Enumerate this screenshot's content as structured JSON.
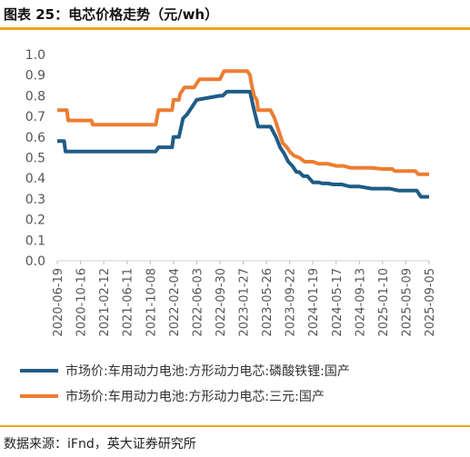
{
  "title": "图表 25：电芯价格走势（元/wh）",
  "source": "数据来源：iFnd，英大证券研究所",
  "colors": {
    "accent": "#f2a71b"
  },
  "chart_data": {
    "type": "line",
    "ylim": [
      0,
      1.0
    ],
    "yticks": [
      "0.0",
      "0.1",
      "0.2",
      "0.3",
      "0.4",
      "0.5",
      "0.6",
      "0.7",
      "0.8",
      "0.9",
      "1.0"
    ],
    "xticks": [
      "2020-06-19",
      "2020-10-16",
      "2021-02-12",
      "2021-06-11",
      "2021-10-08",
      "2022-02-04",
      "2022-06-03",
      "2022-09-30",
      "2023-01-27",
      "2023-05-26",
      "2023-09-22",
      "2024-01-19",
      "2024-05-17",
      "2024-09-13",
      "2025-01-10",
      "2025-05-09",
      "2025-09-05"
    ],
    "grid": false,
    "legend_position": "bottom",
    "series": [
      {
        "name": "市场价:车用动力电池:方形动力电芯:磷酸铁锂:国产",
        "color": "#1f5c86",
        "x": [
          "2020-06-19",
          "2020-07-24",
          "2020-07-31",
          "2021-03-01",
          "2021-06-01",
          "2021-09-01",
          "2021-11-05",
          "2021-11-19",
          "2021-12-10",
          "2021-12-31",
          "2022-01-07",
          "2022-01-28",
          "2022-02-04",
          "2022-02-18",
          "2022-03-04",
          "2022-03-11",
          "2022-03-25",
          "2022-04-15",
          "2022-05-06",
          "2022-06-03",
          "2022-09-30",
          "2022-10-14",
          "2022-11-04",
          "2023-01-27",
          "2023-02-10",
          "2023-03-03",
          "2023-03-10",
          "2023-03-24",
          "2023-04-14",
          "2023-05-26",
          "2023-06-16",
          "2023-07-14",
          "2023-08-04",
          "2023-08-25",
          "2023-09-15",
          "2023-10-06",
          "2023-10-27",
          "2023-11-10",
          "2023-12-01",
          "2023-12-22",
          "2024-01-19",
          "2024-02-16",
          "2024-03-08",
          "2024-04-05",
          "2024-05-03",
          "2024-06-14",
          "2024-07-26",
          "2024-09-13",
          "2024-11-15",
          "2025-01-10",
          "2025-02-14",
          "2025-04-04",
          "2025-05-09",
          "2025-06-13",
          "2025-07-04",
          "2025-07-25",
          "2025-09-05"
        ],
        "y": [
          0.58,
          0.58,
          0.53,
          0.53,
          0.53,
          0.53,
          0.53,
          0.55,
          0.55,
          0.55,
          0.55,
          0.55,
          0.6,
          0.6,
          0.6,
          0.63,
          0.69,
          0.71,
          0.74,
          0.78,
          0.8,
          0.8,
          0.82,
          0.82,
          0.82,
          0.82,
          0.79,
          0.73,
          0.65,
          0.65,
          0.65,
          0.6,
          0.55,
          0.52,
          0.48,
          0.46,
          0.43,
          0.43,
          0.41,
          0.41,
          0.38,
          0.38,
          0.375,
          0.375,
          0.37,
          0.37,
          0.36,
          0.36,
          0.35,
          0.35,
          0.35,
          0.34,
          0.34,
          0.34,
          0.34,
          0.31,
          0.31
        ]
      },
      {
        "name": "市场价:车用动力电池:方形动力电芯:三元:国产",
        "color": "#ec7d31",
        "x": [
          "2020-06-19",
          "2020-08-07",
          "2020-08-14",
          "2020-12-11",
          "2020-12-18",
          "2021-06-01",
          "2021-11-05",
          "2021-11-19",
          "2021-12-10",
          "2021-12-31",
          "2022-01-07",
          "2022-01-28",
          "2022-02-04",
          "2022-02-11",
          "2022-03-04",
          "2022-03-11",
          "2022-04-01",
          "2022-04-22",
          "2022-05-20",
          "2022-06-03",
          "2022-06-17",
          "2022-09-30",
          "2022-10-21",
          "2022-12-30",
          "2023-01-27",
          "2023-02-17",
          "2023-03-03",
          "2023-03-10",
          "2023-03-24",
          "2023-04-07",
          "2023-04-14",
          "2023-05-26",
          "2023-06-16",
          "2023-07-07",
          "2023-07-28",
          "2023-08-18",
          "2023-09-08",
          "2023-09-22",
          "2023-10-13",
          "2023-11-10",
          "2023-12-08",
          "2024-01-19",
          "2024-02-16",
          "2024-04-05",
          "2024-05-17",
          "2024-06-21",
          "2024-08-02",
          "2024-09-13",
          "2024-11-15",
          "2025-01-10",
          "2025-02-28",
          "2025-03-14",
          "2025-05-09",
          "2025-06-27",
          "2025-07-11",
          "2025-09-05"
        ],
        "y": [
          0.73,
          0.73,
          0.68,
          0.68,
          0.66,
          0.66,
          0.66,
          0.73,
          0.73,
          0.73,
          0.73,
          0.73,
          0.78,
          0.78,
          0.78,
          0.81,
          0.84,
          0.84,
          0.84,
          0.86,
          0.88,
          0.88,
          0.92,
          0.92,
          0.92,
          0.92,
          0.9,
          0.86,
          0.8,
          0.78,
          0.73,
          0.73,
          0.73,
          0.69,
          0.63,
          0.57,
          0.55,
          0.53,
          0.51,
          0.5,
          0.48,
          0.48,
          0.47,
          0.47,
          0.46,
          0.46,
          0.45,
          0.45,
          0.45,
          0.445,
          0.445,
          0.435,
          0.435,
          0.435,
          0.42,
          0.42
        ]
      }
    ]
  }
}
